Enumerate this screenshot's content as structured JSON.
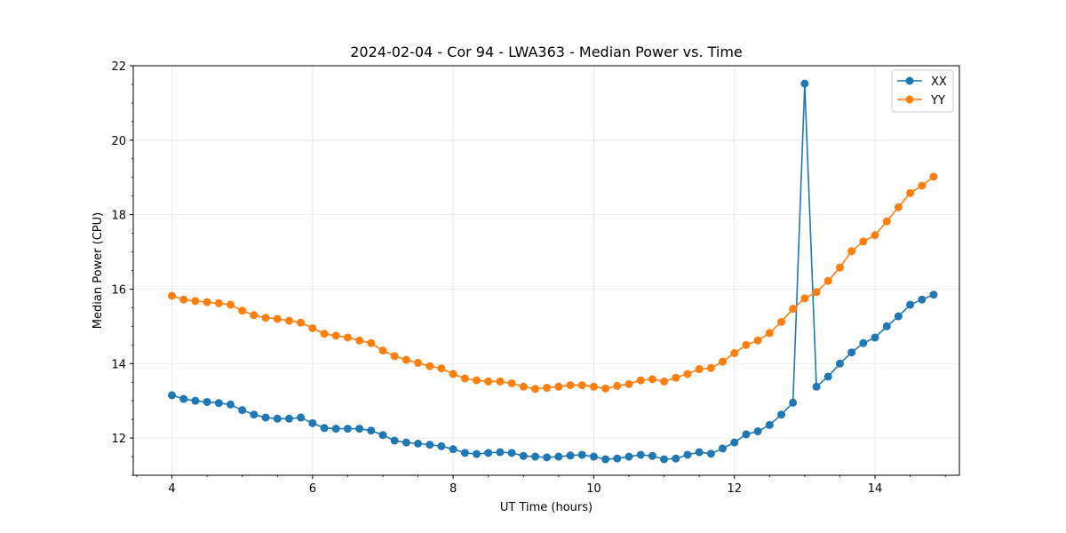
{
  "chart_data": {
    "type": "line",
    "title": "2024-02-04 - Cor 94 - LWA363 - Median Power vs. Time",
    "xlabel": "UT Time (hours)",
    "ylabel": "Median Power (CPU)",
    "xlim": [
      3.45,
      15.2
    ],
    "ylim": [
      11.0,
      22.0
    ],
    "xticks": [
      4,
      6,
      8,
      10,
      12,
      14
    ],
    "xtick_labels": [
      "4",
      "6",
      "8",
      "10",
      "12",
      "14"
    ],
    "yticks": [
      12,
      14,
      16,
      18,
      20,
      22
    ],
    "ytick_labels": [
      "12",
      "14",
      "16",
      "18",
      "20",
      "22"
    ],
    "grid": true,
    "legend_position": "top-right",
    "x": [
      4.0,
      4.167,
      4.333,
      4.5,
      4.667,
      4.833,
      5.0,
      5.167,
      5.333,
      5.5,
      5.667,
      5.833,
      6.0,
      6.167,
      6.333,
      6.5,
      6.667,
      6.833,
      7.0,
      7.167,
      7.333,
      7.5,
      7.667,
      7.833,
      8.0,
      8.167,
      8.333,
      8.5,
      8.667,
      8.833,
      9.0,
      9.167,
      9.333,
      9.5,
      9.667,
      9.833,
      10.0,
      10.167,
      10.333,
      10.5,
      10.667,
      10.833,
      11.0,
      11.167,
      11.333,
      11.5,
      11.667,
      11.833,
      12.0,
      12.167,
      12.333,
      12.5,
      12.667,
      12.833,
      13.0,
      13.167,
      13.333,
      13.5,
      13.667,
      13.833,
      14.0,
      14.167,
      14.333,
      14.5,
      14.667,
      14.833
    ],
    "series": [
      {
        "name": "XX",
        "color": "#1f77b4",
        "values": [
          13.15,
          13.05,
          13.0,
          12.97,
          12.94,
          12.9,
          12.75,
          12.63,
          12.55,
          12.52,
          12.52,
          12.55,
          12.4,
          12.27,
          12.25,
          12.25,
          12.25,
          12.2,
          12.08,
          11.93,
          11.88,
          11.85,
          11.82,
          11.78,
          11.7,
          11.6,
          11.57,
          11.6,
          11.62,
          11.6,
          11.52,
          11.5,
          11.48,
          11.5,
          11.53,
          11.55,
          11.5,
          11.43,
          11.45,
          11.5,
          11.55,
          11.52,
          11.43,
          11.45,
          11.55,
          11.62,
          11.58,
          11.72,
          11.88,
          12.1,
          12.18,
          12.35,
          12.63,
          12.95,
          21.52,
          13.38,
          13.65,
          14.0,
          14.3,
          14.55,
          14.7,
          15.0,
          15.27,
          15.58,
          15.72,
          15.85
        ]
      },
      {
        "name": "YY",
        "color": "#ff7f0e",
        "values": [
          15.82,
          15.72,
          15.68,
          15.65,
          15.62,
          15.58,
          15.42,
          15.3,
          15.23,
          15.2,
          15.15,
          15.1,
          14.95,
          14.8,
          14.75,
          14.7,
          14.62,
          14.55,
          14.35,
          14.2,
          14.1,
          14.02,
          13.93,
          13.87,
          13.72,
          13.6,
          13.55,
          13.52,
          13.52,
          13.47,
          13.38,
          13.32,
          13.35,
          13.38,
          13.42,
          13.42,
          13.38,
          13.33,
          13.4,
          13.45,
          13.55,
          13.58,
          13.52,
          13.62,
          13.72,
          13.85,
          13.88,
          14.05,
          14.28,
          14.5,
          14.62,
          14.82,
          15.12,
          15.47,
          15.75,
          15.92,
          16.22,
          16.58,
          17.02,
          17.28,
          17.45,
          17.82,
          18.2,
          18.58,
          18.78,
          19.02
        ]
      }
    ]
  }
}
